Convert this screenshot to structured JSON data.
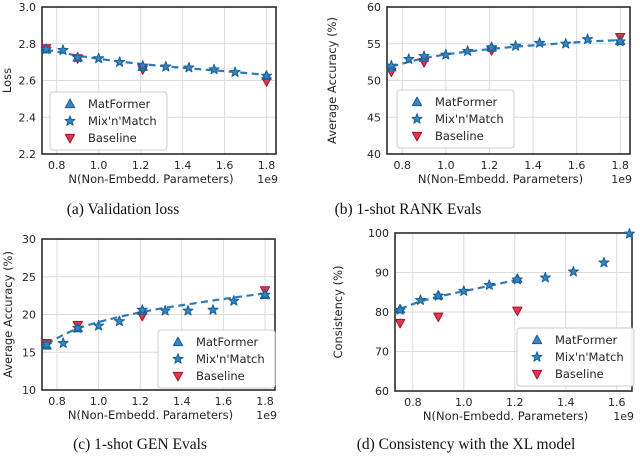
{
  "figure": {
    "xlabel": "N(Non-Embedd. Parameters)",
    "offset_text": "1e9",
    "legend_items": [
      "MatFormer",
      "Mix'n'Match",
      "Baseline"
    ]
  },
  "colors": {
    "blue_line": "#2b7bba",
    "blue_marker_fill": "#3987c1",
    "blue_marker_edge": "#1b6298",
    "red_marker_fill": "#d93b4f",
    "red_marker_edge": "#b6112e",
    "grid": "#dcdcdc",
    "spine": "#2b2b2b",
    "text": "#262626",
    "legend_border": "#cccccc",
    "legend_bg": "#ffffff"
  },
  "chart_data": [
    {
      "id": "a",
      "type": "scatter",
      "caption": "(a) Validation loss",
      "xlabel": "N(Non-Embedd. Parameters)",
      "offset_text": "1e9",
      "ylabel": "Loss",
      "xlim": [
        0.73,
        1.845
      ],
      "ylim": [
        2.2,
        3.0
      ],
      "xticks": [
        0.8,
        1.0,
        1.2,
        1.4,
        1.6,
        1.8
      ],
      "yticks": [
        2.2,
        2.4,
        2.6,
        2.8,
        3.0
      ],
      "xtick_decimals": 1,
      "ytick_decimals": 1,
      "grid": true,
      "legend_loc": "lower left",
      "series": [
        {
          "name": "MatFormer",
          "marker": "triangle-up",
          "color": "blue",
          "x": [
            0.75,
            0.9,
            1.21,
            1.8
          ],
          "y": [
            2.77,
            2.725,
            2.675,
            2.625
          ]
        },
        {
          "name": "Mix'n'Match",
          "marker": "star",
          "color": "blue",
          "x": [
            0.75,
            0.83,
            0.9,
            1.0,
            1.1,
            1.21,
            1.32,
            1.43,
            1.55,
            1.65,
            1.8
          ],
          "y": [
            2.77,
            2.765,
            2.725,
            2.72,
            2.7,
            2.68,
            2.675,
            2.67,
            2.66,
            2.645,
            2.625
          ]
        },
        {
          "name": "Baseline",
          "marker": "triangle-down",
          "color": "red",
          "x": [
            0.75,
            0.9,
            1.21,
            1.8
          ],
          "y": [
            2.775,
            2.72,
            2.66,
            2.595
          ]
        }
      ],
      "trend_line": {
        "style": "dashed",
        "color": "blue",
        "x": [
          0.75,
          0.83,
          0.9,
          1.0,
          1.1,
          1.21,
          1.32,
          1.43,
          1.55,
          1.65,
          1.8
        ],
        "y": [
          2.768,
          2.751,
          2.735,
          2.718,
          2.703,
          2.689,
          2.677,
          2.666,
          2.655,
          2.646,
          2.63
        ]
      }
    },
    {
      "id": "b",
      "type": "scatter",
      "caption": "(b) 1-shot RANK Evals",
      "xlabel": "N(Non-Embedd. Parameters)",
      "offset_text": "1e9",
      "ylabel": "Average Accuracy (%)",
      "xlim": [
        0.73,
        1.845
      ],
      "ylim": [
        40,
        60
      ],
      "xticks": [
        0.8,
        1.0,
        1.2,
        1.4,
        1.6,
        1.8
      ],
      "yticks": [
        40,
        45,
        50,
        55,
        60
      ],
      "xtick_decimals": 1,
      "ytick_decimals": 0,
      "grid": true,
      "legend_loc": "lower left",
      "series": [
        {
          "name": "MatFormer",
          "marker": "triangle-up",
          "color": "blue",
          "x": [
            0.75,
            0.9,
            1.21,
            1.8
          ],
          "y": [
            51.8,
            53.1,
            54.5,
            55.4
          ]
        },
        {
          "name": "Mix'n'Match",
          "marker": "star",
          "color": "blue",
          "x": [
            0.75,
            0.83,
            0.9,
            1.0,
            1.1,
            1.21,
            1.32,
            1.43,
            1.55,
            1.65,
            1.8
          ],
          "y": [
            52.0,
            52.9,
            53.3,
            53.5,
            54.0,
            54.5,
            54.7,
            55.1,
            55.0,
            55.6,
            55.3
          ]
        },
        {
          "name": "Baseline",
          "marker": "triangle-down",
          "color": "red",
          "x": [
            0.75,
            0.9,
            1.21,
            1.8
          ],
          "y": [
            51.2,
            52.5,
            54.1,
            55.9
          ]
        }
      ],
      "trend_line": {
        "style": "dashed",
        "color": "blue",
        "x": [
          0.75,
          0.83,
          0.9,
          1.0,
          1.1,
          1.21,
          1.32,
          1.43,
          1.55,
          1.65,
          1.8
        ],
        "y": [
          51.9,
          52.55,
          53.05,
          53.55,
          53.95,
          54.3,
          54.6,
          54.85,
          55.1,
          55.3,
          55.5
        ]
      }
    },
    {
      "id": "c",
      "type": "scatter",
      "caption": "(c) 1-shot GEN Evals",
      "xlabel": "N(Non-Embedd. Parameters)",
      "offset_text": "1e9",
      "ylabel": "Average Accuracy (%)",
      "xlim": [
        0.728,
        1.848
      ],
      "ylim": [
        10,
        30
      ],
      "xticks": [
        0.8,
        1.0,
        1.2,
        1.4,
        1.6,
        1.8
      ],
      "yticks": [
        10,
        15,
        20,
        25,
        30
      ],
      "xtick_decimals": 1,
      "ytick_decimals": 0,
      "grid": true,
      "legend_loc": "lower right",
      "series": [
        {
          "name": "MatFormer",
          "marker": "triangle-up",
          "color": "blue",
          "x": [
            0.75,
            0.9,
            1.21,
            1.8
          ],
          "y": [
            15.9,
            18.2,
            20.5,
            22.6
          ]
        },
        {
          "name": "Mix'n'Match",
          "marker": "star",
          "color": "blue",
          "x": [
            0.75,
            0.83,
            0.9,
            1.0,
            1.1,
            1.21,
            1.32,
            1.43,
            1.55,
            1.65,
            1.8
          ],
          "y": [
            16.0,
            16.2,
            18.2,
            18.5,
            19.1,
            20.6,
            20.5,
            20.5,
            20.6,
            21.8,
            22.6
          ]
        },
        {
          "name": "Baseline",
          "marker": "triangle-down",
          "color": "red",
          "x": [
            0.75,
            0.9,
            1.21,
            1.8
          ],
          "y": [
            16.2,
            18.6,
            19.8,
            23.2
          ]
        }
      ],
      "trend_line": {
        "style": "dashed",
        "color": "blue",
        "x": [
          0.75,
          0.83,
          0.9,
          1.0,
          1.1,
          1.21,
          1.32,
          1.43,
          1.55,
          1.65,
          1.8
        ],
        "y": [
          16.1,
          17.3,
          18.2,
          19.0,
          19.7,
          20.35,
          20.9,
          21.35,
          21.85,
          22.25,
          22.8
        ]
      }
    },
    {
      "id": "d",
      "type": "scatter",
      "caption": "(d) Consistency with the XL model",
      "xlabel": "N(Non-Embedd. Parameters)",
      "offset_text": "1e9",
      "ylabel": "Consistency (%)",
      "xlim": [
        0.73,
        1.66
      ],
      "ylim": [
        60,
        100
      ],
      "xticks": [
        0.8,
        1.0,
        1.2,
        1.4,
        1.6
      ],
      "yticks": [
        60,
        70,
        80,
        90,
        100
      ],
      "xtick_decimals": 1,
      "ytick_decimals": 0,
      "grid": true,
      "legend_loc": "lower right",
      "series": [
        {
          "name": "MatFormer",
          "marker": "triangle-up",
          "color": "blue",
          "x": [
            0.75,
            0.9,
            1.21
          ],
          "y": [
            80.7,
            84.2,
            88.4
          ]
        },
        {
          "name": "Mix'n'Match",
          "marker": "star",
          "color": "blue",
          "x": [
            0.75,
            0.83,
            0.9,
            1.0,
            1.1,
            1.21,
            1.32,
            1.43,
            1.55,
            1.65
          ],
          "y": [
            80.5,
            83.0,
            84.1,
            85.3,
            86.8,
            88.2,
            88.7,
            90.2,
            92.5,
            99.8
          ]
        },
        {
          "name": "Baseline",
          "marker": "triangle-down",
          "color": "red",
          "x": [
            0.75,
            0.9,
            1.21
          ],
          "y": [
            77.2,
            78.8,
            80.3
          ]
        }
      ],
      "trend_line": {
        "style": "dashed",
        "color": "blue",
        "x": [
          0.75,
          0.83,
          0.9,
          1.0,
          1.1,
          1.21
        ],
        "y": [
          80.8,
          82.7,
          83.9,
          85.3,
          86.6,
          88.2
        ]
      }
    }
  ]
}
